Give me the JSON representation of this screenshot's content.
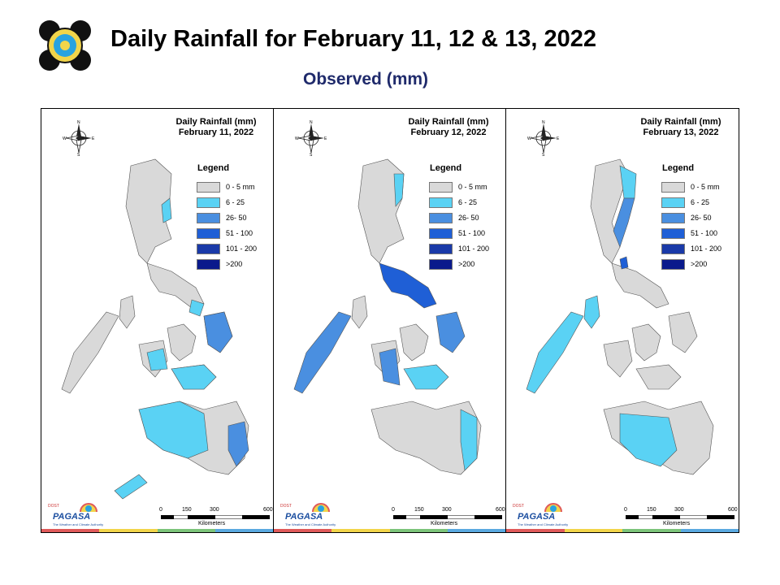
{
  "header": {
    "title": "Daily Rainfall for February 11, 12 & 13, 2022",
    "subtitle": "Observed (mm)"
  },
  "legend": {
    "title": "Legend",
    "items": [
      {
        "label": "0 - 5 mm",
        "color": "#d9d9d9"
      },
      {
        "label": "6 - 25",
        "color": "#5ad2f4"
      },
      {
        "label": "26- 50",
        "color": "#4a8fe0"
      },
      {
        "label": "51 - 100",
        "color": "#1f5fd6"
      },
      {
        "label": "101 - 200",
        "color": "#1a3aa8"
      },
      {
        "label": ">200",
        "color": "#0a1a8c"
      }
    ]
  },
  "compass": {
    "n": "N",
    "s": "S",
    "e": "E",
    "w": "W"
  },
  "scale": {
    "ticks": [
      "0",
      "150",
      "300",
      "600"
    ],
    "unit": "Kilometers"
  },
  "branding": {
    "name": "PAGASA",
    "tagline": "The Weather and Climate Authority",
    "prefix": "DOST"
  },
  "panels": [
    {
      "title_line1": "Daily Rainfall (mm)",
      "title_line2": "February 11, 2022"
    },
    {
      "title_line1": "Daily Rainfall (mm)",
      "title_line2": "February 12, 2022"
    },
    {
      "title_line1": "Daily Rainfall (mm)",
      "title_line2": "February 13, 2022"
    }
  ],
  "stripe_colors": [
    "#e05a5a",
    "#f2d54a",
    "#7cc47a",
    "#5aa9e0"
  ]
}
